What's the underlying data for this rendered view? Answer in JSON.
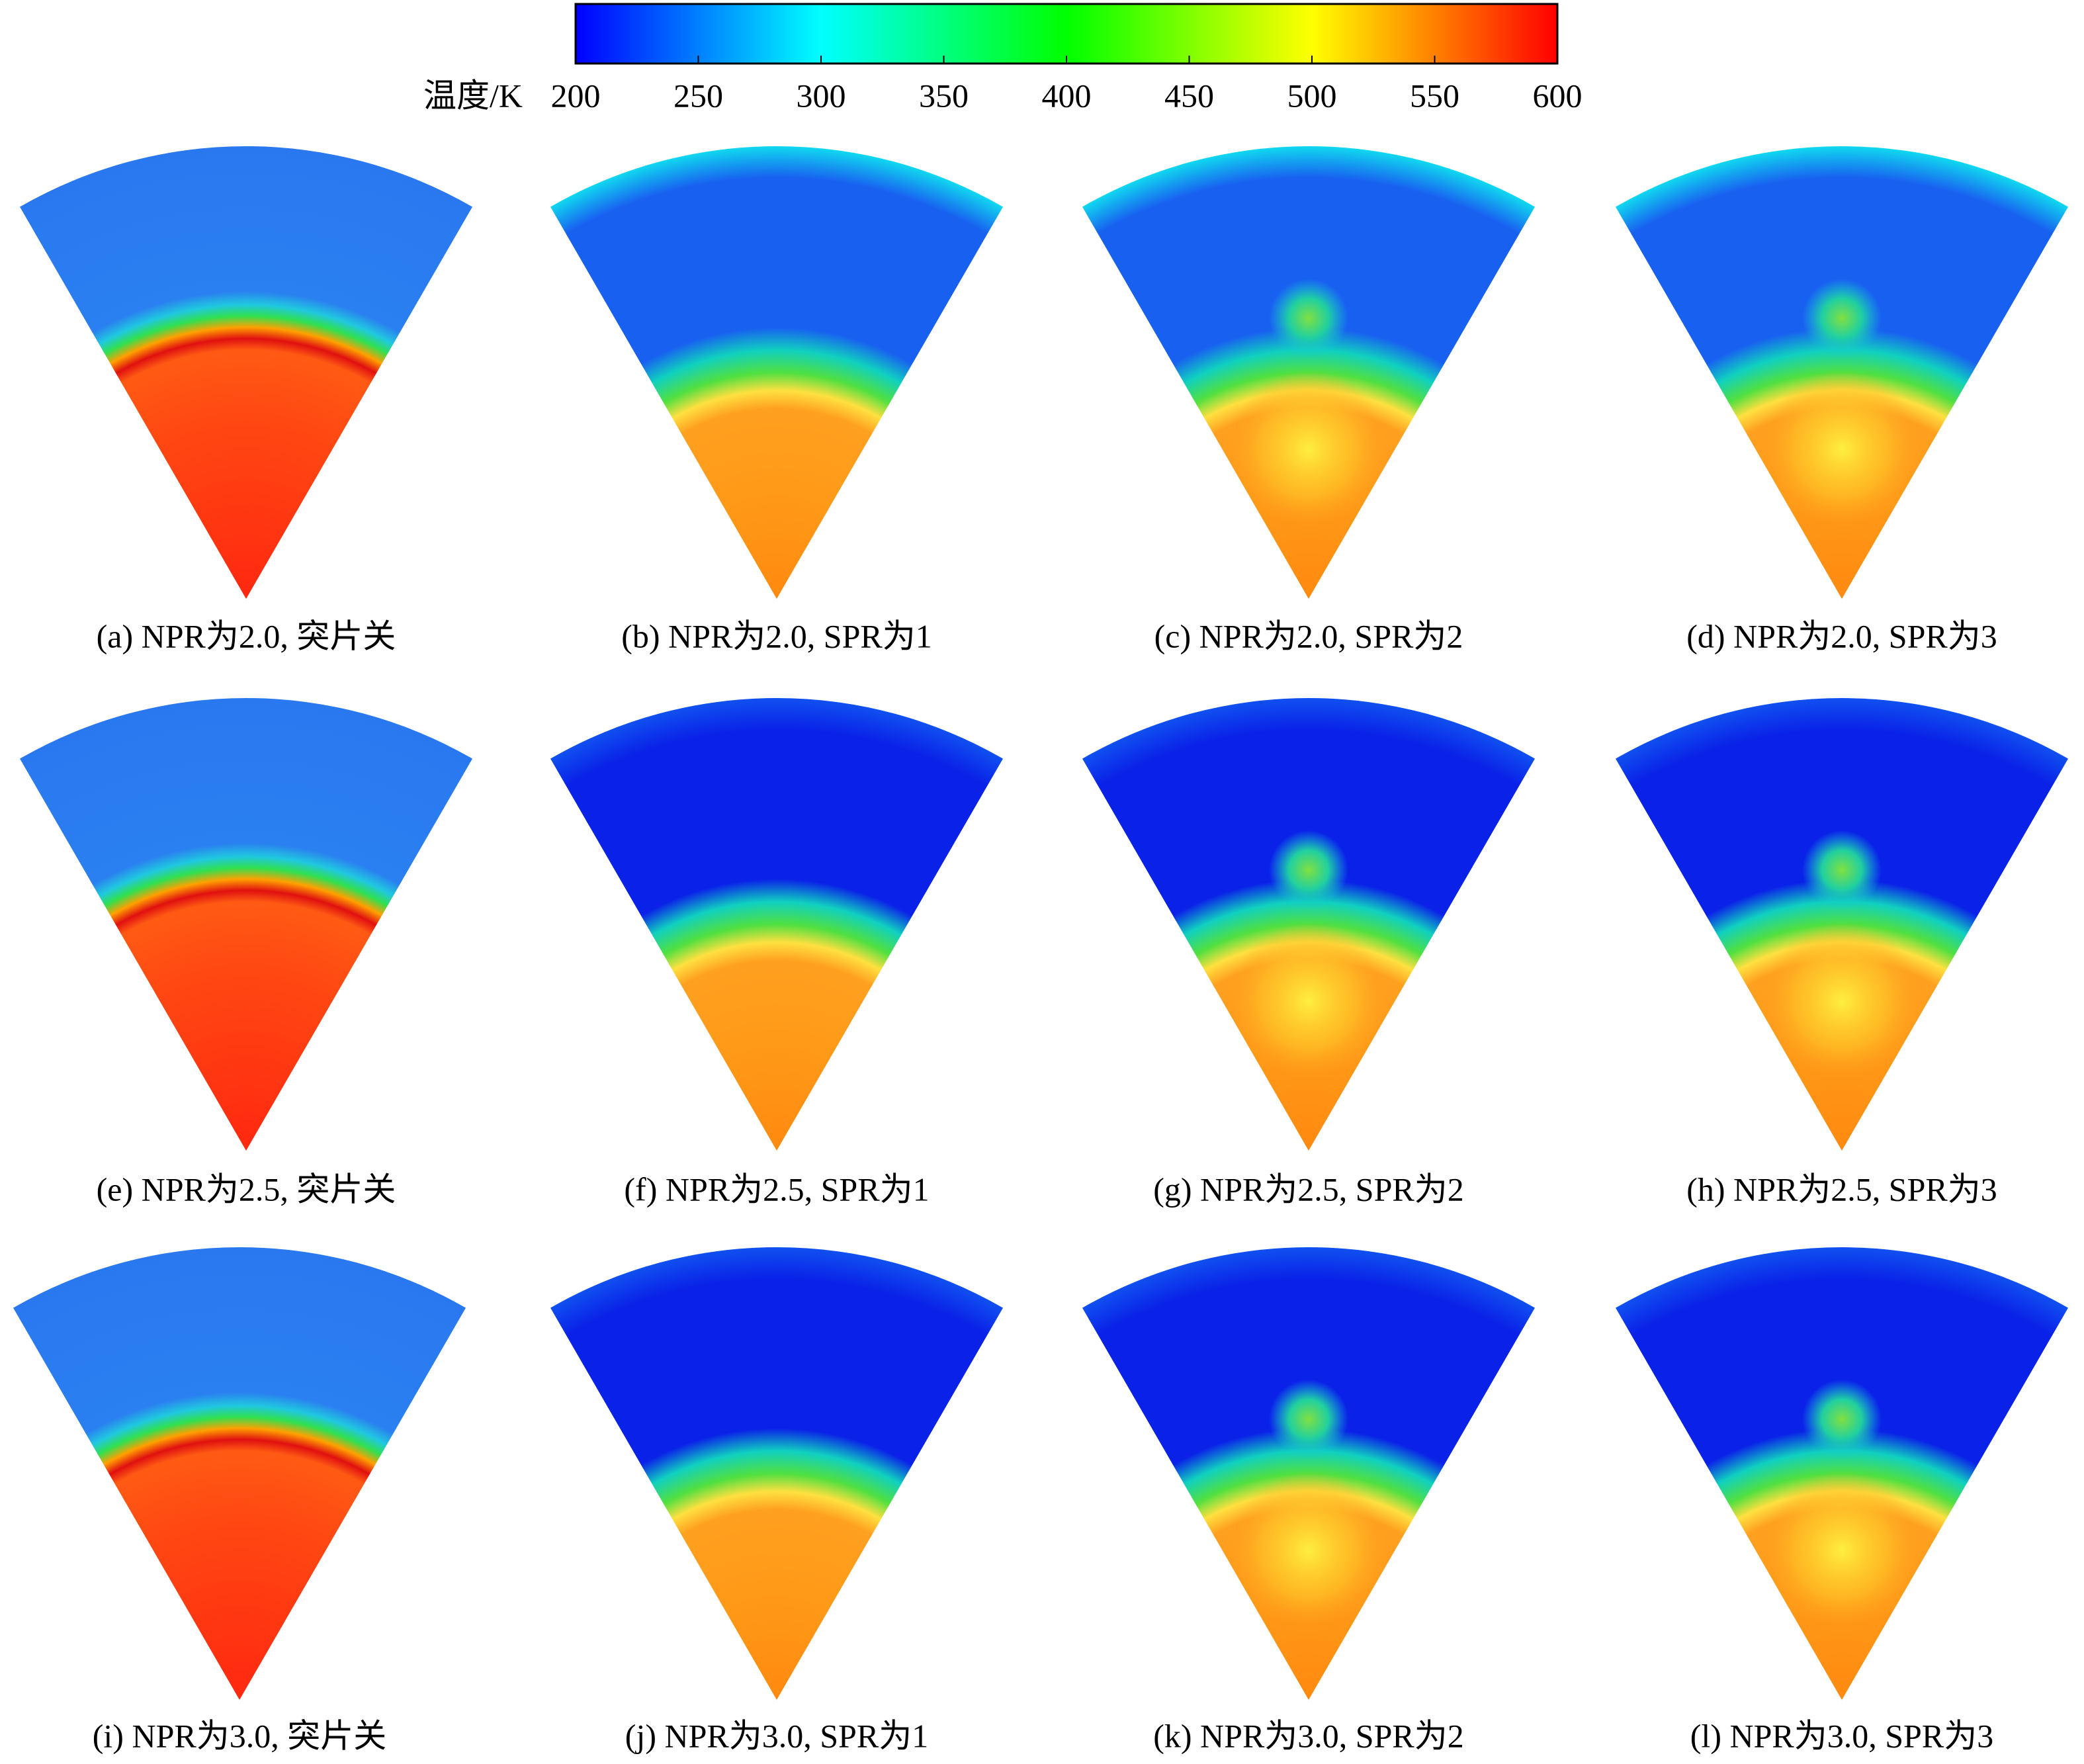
{
  "colorbar": {
    "label": "温度/K",
    "range": [
      200,
      600
    ],
    "ticks": [
      200,
      250,
      300,
      350,
      400,
      450,
      500,
      550,
      600
    ],
    "colors": [
      "#0000ff",
      "#00ffff",
      "#00ff00",
      "#ffff00",
      "#ff0000"
    ]
  },
  "panels": [
    {
      "caption": "(a) NPR为2.0, 突片关"
    },
    {
      "caption": "(b) NPR为2.0, SPR为1"
    },
    {
      "caption": "(c) NPR为2.0, SPR为2"
    },
    {
      "caption": "(d) NPR为2.0, SPR为3"
    },
    {
      "caption": "(e) NPR为2.5, 突片关"
    },
    {
      "caption": "(f) NPR为2.5, SPR为1"
    },
    {
      "caption": "(g) NPR为2.5, SPR为2"
    },
    {
      "caption": "(h) NPR为2.5, SPR为3"
    },
    {
      "caption": "(i) NPR为3.0, 突片关"
    },
    {
      "caption": "(j) NPR为3.0, SPR为1"
    },
    {
      "caption": "(k) NPR为3.0, SPR为2"
    },
    {
      "caption": "(l) NPR为3.0, SPR为3"
    }
  ]
}
